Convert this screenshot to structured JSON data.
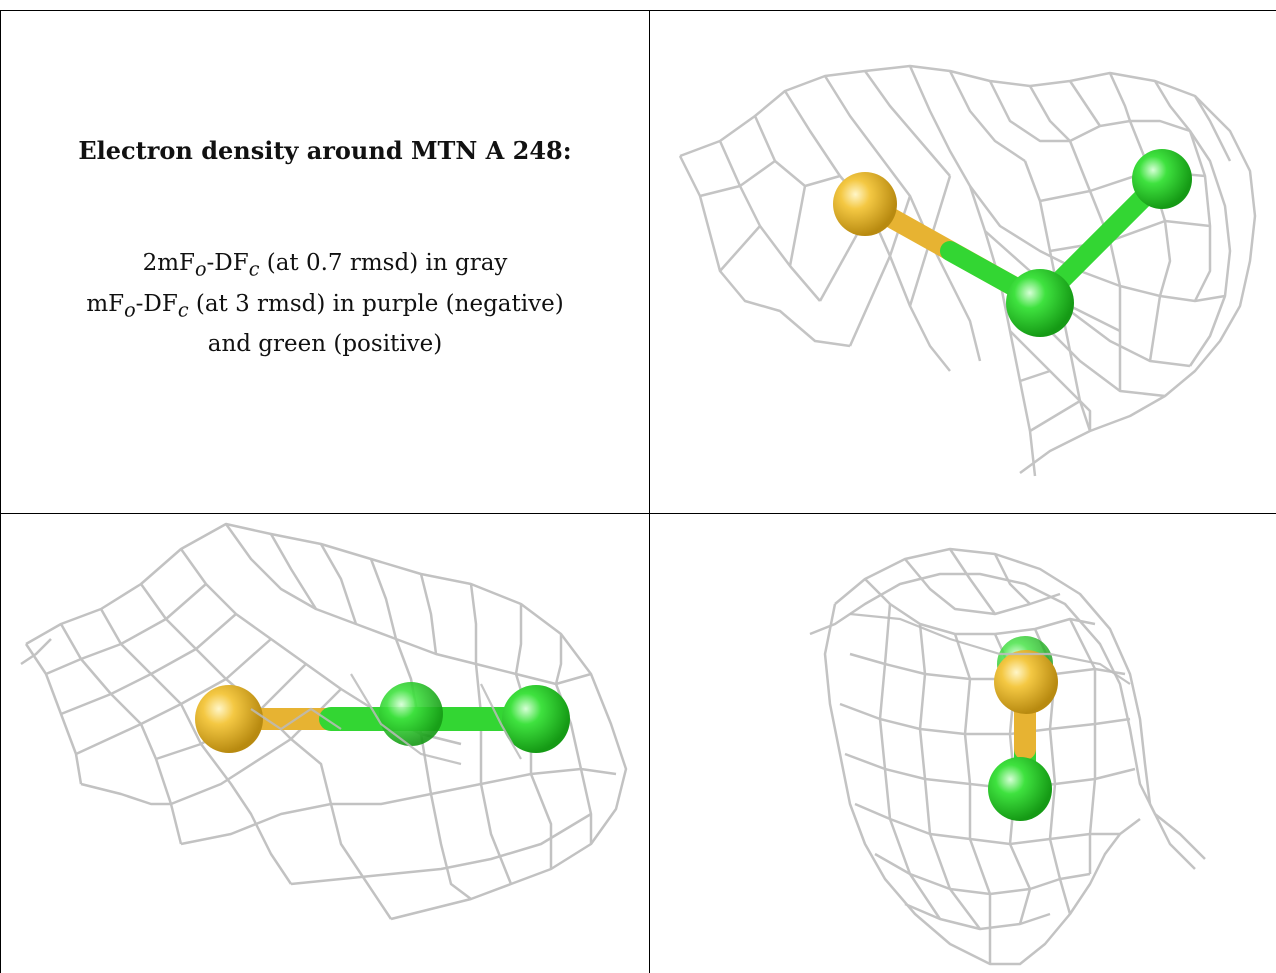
{
  "title": "Electron density around MTN A 248:",
  "legend": {
    "line1": {
      "a": "2mF",
      "b": "o",
      "c": "-DF",
      "d": "c",
      "e": " (at 0.7 rmsd) in gray"
    },
    "line2": {
      "a": "mF",
      "b": "o",
      "c": "-DF",
      "d": "c",
      "e": " (at 3 rmsd) in purple (negative)"
    },
    "line3": "and green (positive)"
  },
  "colors": {
    "mesh_gray": "#bdbdbd",
    "sulfur": "#f2c33a",
    "carbon_green": "#33dd33"
  },
  "views": [
    "view-top-right",
    "view-bottom-left",
    "view-bottom-right"
  ]
}
